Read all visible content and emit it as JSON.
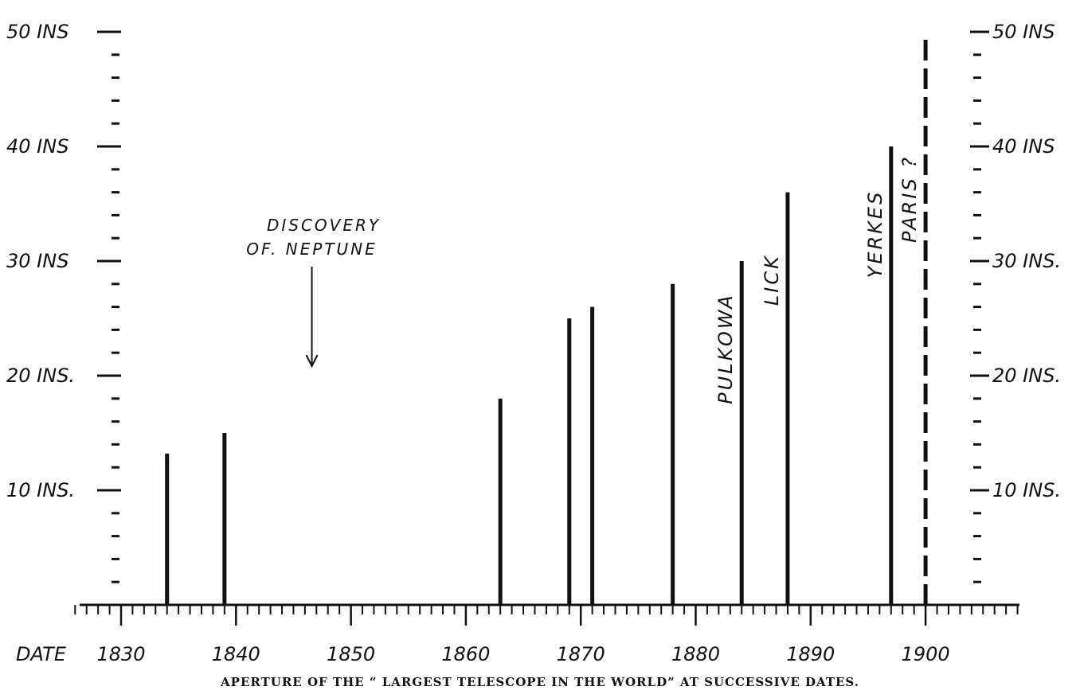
{
  "chart_data": {
    "type": "bar",
    "title": "APERTURE OF THE “ LARGEST TELESCOPE IN THE WORLD” AT SUCCESSIVE DATES.",
    "xlabel": "DATE",
    "ylabel": "",
    "x_tick_labels": [
      "1830",
      "1840",
      "1850",
      "1860",
      "1870",
      "1880",
      "1890",
      "1900"
    ],
    "x_ticks": [
      1830,
      1840,
      1850,
      1860,
      1870,
      1880,
      1890,
      1900
    ],
    "xlim": [
      1826,
      1908
    ],
    "ylim": [
      0,
      50
    ],
    "y_left_ticks": [
      {
        "value": 50,
        "label": "50 INS"
      },
      {
        "value": 40,
        "label": "40 INS"
      },
      {
        "value": 30,
        "label": "30 INS"
      },
      {
        "value": 20,
        "label": "20 INS."
      },
      {
        "value": 10,
        "label": "10 INS."
      }
    ],
    "y_right_ticks": [
      {
        "value": 50,
        "label": "50 INS"
      },
      {
        "value": 40,
        "label": "40 INS"
      },
      {
        "value": 30,
        "label": "30 INS."
      },
      {
        "value": 20,
        "label": "20 INS."
      },
      {
        "value": 10,
        "label": "10 INS."
      }
    ],
    "bars": [
      {
        "year": 1834,
        "value": 13.2,
        "label": "",
        "style": "solid"
      },
      {
        "year": 1839,
        "value": 15.0,
        "label": "",
        "style": "solid"
      },
      {
        "year": 1863,
        "value": 18.0,
        "label": "",
        "style": "solid"
      },
      {
        "year": 1869,
        "value": 25.0,
        "label": "",
        "style": "solid"
      },
      {
        "year": 1871,
        "value": 26.0,
        "label": "",
        "style": "solid"
      },
      {
        "year": 1878,
        "value": 28.0,
        "label": "",
        "style": "solid"
      },
      {
        "year": 1884,
        "value": 30.0,
        "label": "PULKOWA",
        "style": "solid"
      },
      {
        "year": 1888,
        "value": 36.0,
        "label": "LICK",
        "style": "solid"
      },
      {
        "year": 1897,
        "value": 40.0,
        "label": "YERKES",
        "style": "solid"
      },
      {
        "year": 1900,
        "value": 50.0,
        "label": "PARIS ?",
        "style": "dashed"
      }
    ],
    "annotations": [
      {
        "text_lines": [
          "DISCOVERY",
          "OF. NEPTUNE"
        ],
        "year": 1846.6,
        "arrow": "down"
      }
    ],
    "grid": false,
    "legend": "none"
  }
}
